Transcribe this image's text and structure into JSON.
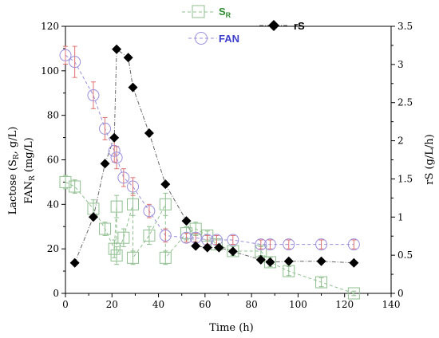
{
  "chart_data": {
    "type": "scatter",
    "x_axis": {
      "label": "Time (h)",
      "range": [
        0,
        140
      ],
      "ticks": [
        "0",
        "20",
        "40",
        "60",
        "80",
        "100",
        "120",
        "140"
      ]
    },
    "y_axis_left": {
      "label_line1_parts": [
        "Lactose (S",
        "R",
        ", g/L)"
      ],
      "label_line2_parts": [
        "FAN",
        "R",
        " (mg/L)"
      ],
      "range": [
        0,
        120
      ],
      "ticks": [
        "0",
        "20",
        "40",
        "60",
        "80",
        "100",
        "120"
      ]
    },
    "y_axis_right": {
      "label": "rS (g/L/h)",
      "range": [
        0,
        3.5
      ],
      "ticks": [
        "0",
        "0.5",
        "1",
        "1.5",
        "2",
        "2.5",
        "3",
        "3.5"
      ]
    },
    "legend": {
      "sr": {
        "main": "S",
        "sub": "R"
      },
      "fan": "FAN",
      "rs": "rS"
    },
    "colors": {
      "sr": "#8fbf8f",
      "sr_text": "#2e8b2e",
      "fan": "#9b8fdc",
      "fan_text": "#3d3dcc",
      "fan_error": "#e07070",
      "rs": "#000000",
      "rs_line": "#666666",
      "axis": "#000000"
    },
    "series": [
      {
        "name": "SR",
        "axis": "left",
        "marker": "square",
        "x": [
          0,
          4,
          12,
          17,
          21,
          22,
          22,
          25,
          29,
          29,
          36,
          43,
          43,
          52,
          56,
          61,
          65,
          72,
          84,
          88,
          96,
          110,
          124
        ],
        "y": [
          50,
          48,
          38,
          29,
          20,
          39,
          17,
          25,
          40,
          16,
          26,
          40,
          16,
          27,
          29,
          26,
          22,
          19,
          19,
          14,
          10,
          5,
          0
        ],
        "err": [
          3,
          3,
          4,
          3,
          4,
          5,
          4,
          4,
          5,
          3,
          4,
          5,
          3,
          3,
          3,
          2,
          2,
          2,
          2,
          2,
          2,
          2,
          1
        ]
      },
      {
        "name": "FAN",
        "axis": "left",
        "marker": "circle",
        "x": [
          0,
          4,
          12,
          17,
          21,
          22,
          25,
          29,
          36,
          43,
          52,
          56,
          61,
          65,
          72,
          84,
          88,
          96,
          110,
          124
        ],
        "y": [
          107,
          104,
          89,
          74,
          64,
          61,
          52,
          48,
          37,
          26,
          25,
          25,
          24,
          24,
          24,
          22,
          22,
          22,
          22,
          22
        ],
        "err": [
          4,
          7,
          6,
          5,
          5,
          5,
          4,
          4,
          3,
          3,
          2,
          2,
          2,
          2,
          2,
          2,
          2,
          2,
          2,
          2
        ]
      },
      {
        "name": "rS",
        "axis": "right",
        "marker": "diamond",
        "x": [
          4,
          12,
          17,
          21,
          22,
          27,
          29,
          36,
          43,
          52,
          56,
          61,
          66,
          72,
          84,
          88,
          96,
          110,
          124
        ],
        "y": [
          0.4,
          1.0,
          1.7,
          2.04,
          3.2,
          3.09,
          2.7,
          2.1,
          1.43,
          0.95,
          0.62,
          0.6,
          0.6,
          0.55,
          0.44,
          0.41,
          0.42,
          0.42,
          0.4
        ]
      }
    ]
  }
}
